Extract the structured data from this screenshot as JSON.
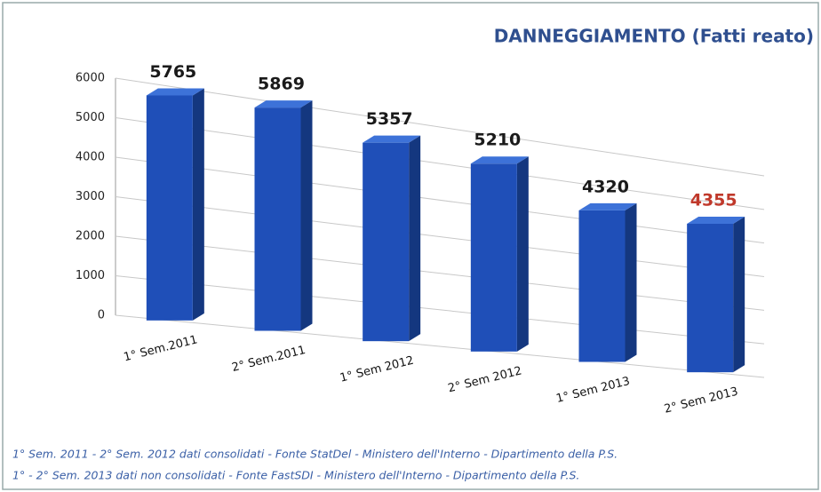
{
  "chart_data": {
    "type": "bar",
    "title": "DANNEGGIAMENTO (Fatti reato)",
    "categories": [
      "1° Sem.2011",
      "2° Sem.2011",
      "1° Sem 2012",
      "2° Sem 2012",
      "1° Sem 2013",
      "2° Sem 2013"
    ],
    "values": [
      5765,
      5869,
      5357,
      5210,
      4320,
      4355
    ],
    "color": "#1f4fb8",
    "value_label_colors": [
      "#1a1a1a",
      "#1a1a1a",
      "#1a1a1a",
      "#1a1a1a",
      "#1a1a1a",
      "#c0392b"
    ],
    "ylim": [
      0,
      6000
    ],
    "yticks": [
      0,
      1000,
      2000,
      3000,
      4000,
      5000,
      6000
    ],
    "grid": true,
    "notes": [
      "1° Sem. 2011 - 2° Sem. 2012 dati consolidati - Fonte StatDel - Ministero dell'Interno - Dipartimento della P.S.",
      "1° - 2° Sem. 2013 dati non consolidati - Fonte FastSDI - Ministero dell'Interno - Dipartimento della P.S."
    ]
  }
}
